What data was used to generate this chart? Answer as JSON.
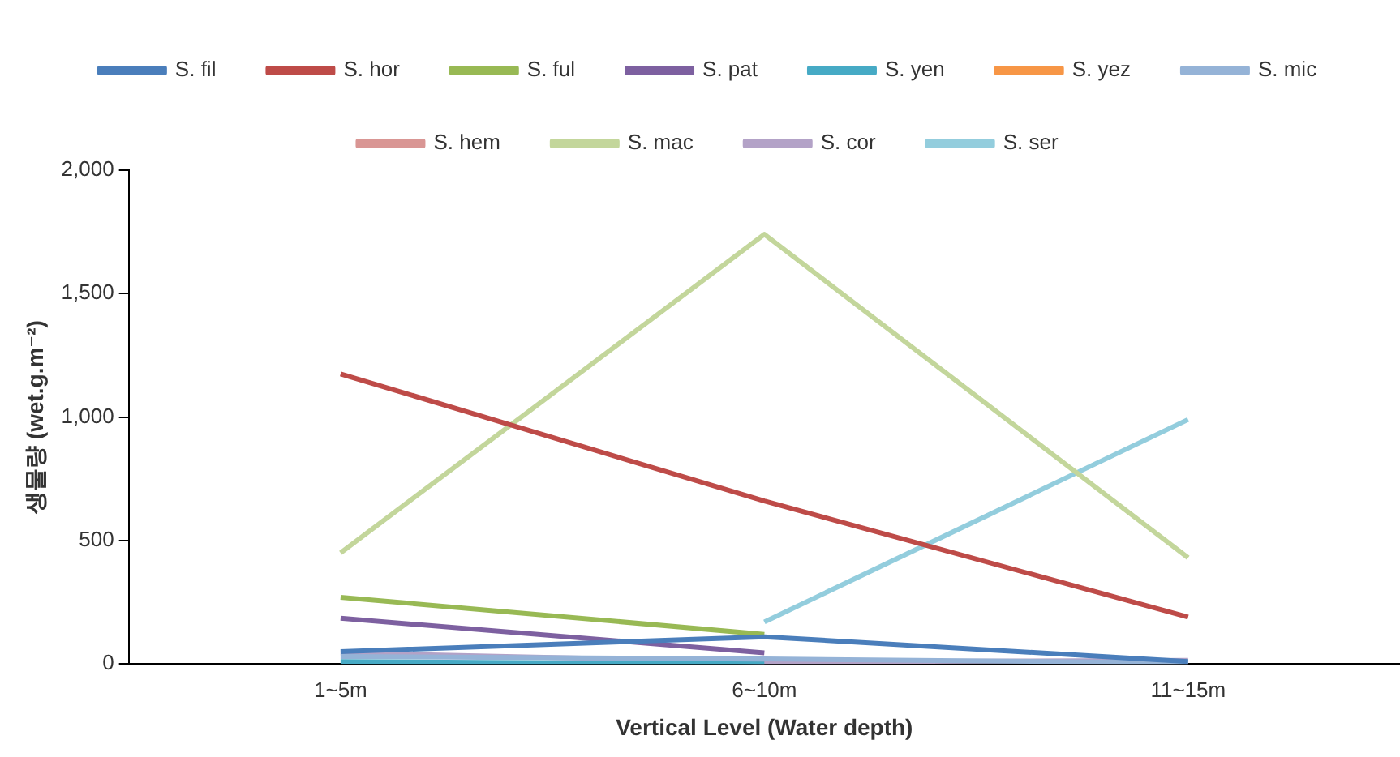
{
  "chart_data": {
    "type": "line",
    "xlabel": "Vertical Level (Water depth)",
    "ylabel": "생물량 (wet.g.m⁻²)",
    "categories": [
      "1~5m",
      "6~10m",
      "11~15m"
    ],
    "ylim": [
      0,
      2000
    ],
    "yticks": [
      {
        "value": 0,
        "label": "0"
      },
      {
        "value": 500,
        "label": "500"
      },
      {
        "value": 1000,
        "label": "1,000"
      },
      {
        "value": 1500,
        "label": "1,500"
      },
      {
        "value": 2000,
        "label": "2,000"
      }
    ],
    "grid": false,
    "legend": "top",
    "marker": "none",
    "line_style": "solid",
    "series": [
      {
        "name": "S. fil",
        "color": "#4a7ebb",
        "values": [
          50,
          110,
          10
        ]
      },
      {
        "name": "S. hor",
        "color": "#be4b48",
        "values": [
          1175,
          660,
          190
        ]
      },
      {
        "name": "S. ful",
        "color": "#98b954",
        "values": [
          270,
          120,
          null
        ]
      },
      {
        "name": "S. pat",
        "color": "#7d60a0",
        "values": [
          185,
          45,
          null
        ]
      },
      {
        "name": "S. yen",
        "color": "#46aac5",
        "values": [
          10,
          0,
          null
        ]
      },
      {
        "name": "S. yez",
        "color": "#f79646",
        "values": [
          null,
          null,
          null
        ]
      },
      {
        "name": "S. mic",
        "color": "#95b3d7",
        "values": [
          30,
          20,
          5
        ]
      },
      {
        "name": "S. hem",
        "color": "#d99694",
        "values": [
          null,
          null,
          null
        ]
      },
      {
        "name": "S. mac",
        "color": "#c3d69b",
        "values": [
          450,
          1740,
          430
        ]
      },
      {
        "name": "S. cor",
        "color": "#b3a2c7",
        "values": [
          45,
          8,
          15
        ]
      },
      {
        "name": "S. ser",
        "color": "#93cddd",
        "values": [
          null,
          170,
          990
        ]
      }
    ]
  }
}
